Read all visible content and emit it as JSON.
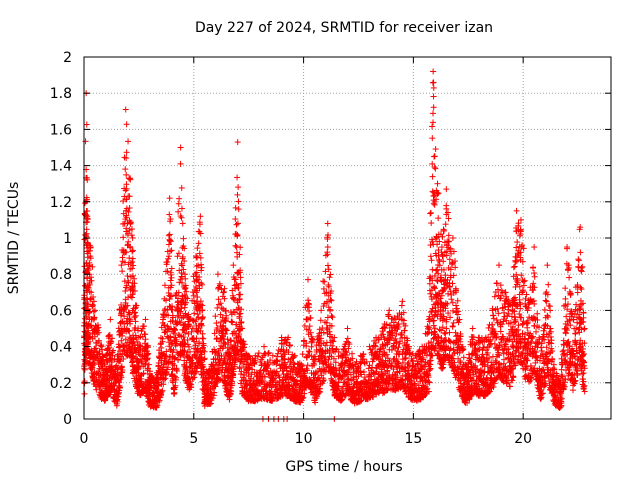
{
  "chart_data": {
    "type": "scatter",
    "title": "Day 227 of 2024, SRMTID for receiver izan",
    "xlabel": "GPS time / hours",
    "ylabel": "SRMTID / TECUs",
    "xlim": [
      0,
      24
    ],
    "ylim": [
      0,
      2
    ],
    "xticks": [
      0,
      5,
      10,
      15,
      20
    ],
    "yticks": [
      0,
      0.2,
      0.4,
      0.6,
      0.8,
      1,
      1.2,
      1.4,
      1.6,
      1.8,
      2
    ],
    "xtick_labels": [
      "0",
      "5",
      "10",
      "15",
      "20"
    ],
    "ytick_labels": [
      "0",
      "0.2",
      "0.4",
      "0.6",
      "0.8",
      "1",
      "1.2",
      "1.4",
      "1.6",
      "1.8",
      "2"
    ],
    "grid": true,
    "marker": "+",
    "marker_color": "#ff0000",
    "zero_markers_x": [
      8.15,
      8.4,
      8.65,
      8.85,
      9.1,
      9.25,
      11.4
    ],
    "series": [
      {
        "name": "SRMTID",
        "envelope": [
          {
            "x": 0.0,
            "y": 0.45
          },
          {
            "x": 0.1,
            "y": 1.8
          },
          {
            "x": 0.15,
            "y": 1.12
          },
          {
            "x": 0.3,
            "y": 0.95
          },
          {
            "x": 0.5,
            "y": 0.6
          },
          {
            "x": 0.8,
            "y": 0.4
          },
          {
            "x": 1.0,
            "y": 0.35
          },
          {
            "x": 1.2,
            "y": 0.55
          },
          {
            "x": 1.5,
            "y": 0.25
          },
          {
            "x": 1.7,
            "y": 0.85
          },
          {
            "x": 1.9,
            "y": 1.71
          },
          {
            "x": 2.1,
            "y": 1.33
          },
          {
            "x": 2.3,
            "y": 0.75
          },
          {
            "x": 2.5,
            "y": 0.45
          },
          {
            "x": 2.8,
            "y": 0.55
          },
          {
            "x": 3.0,
            "y": 0.25
          },
          {
            "x": 3.3,
            "y": 0.22
          },
          {
            "x": 3.6,
            "y": 0.55
          },
          {
            "x": 3.9,
            "y": 1.22
          },
          {
            "x": 4.1,
            "y": 0.45
          },
          {
            "x": 4.4,
            "y": 1.5
          },
          {
            "x": 4.6,
            "y": 0.8
          },
          {
            "x": 4.8,
            "y": 0.55
          },
          {
            "x": 5.1,
            "y": 0.9
          },
          {
            "x": 5.3,
            "y": 1.12
          },
          {
            "x": 5.5,
            "y": 0.25
          },
          {
            "x": 5.8,
            "y": 0.3
          },
          {
            "x": 6.1,
            "y": 0.8
          },
          {
            "x": 6.4,
            "y": 0.72
          },
          {
            "x": 6.6,
            "y": 0.35
          },
          {
            "x": 6.8,
            "y": 0.85
          },
          {
            "x": 7.0,
            "y": 1.53
          },
          {
            "x": 7.2,
            "y": 0.5
          },
          {
            "x": 7.5,
            "y": 0.35
          },
          {
            "x": 7.8,
            "y": 0.35
          },
          {
            "x": 8.2,
            "y": 0.4
          },
          {
            "x": 8.6,
            "y": 0.35
          },
          {
            "x": 9.0,
            "y": 0.45
          },
          {
            "x": 9.3,
            "y": 0.45
          },
          {
            "x": 9.6,
            "y": 0.35
          },
          {
            "x": 9.9,
            "y": 0.3
          },
          {
            "x": 10.2,
            "y": 0.77
          },
          {
            "x": 10.5,
            "y": 0.32
          },
          {
            "x": 10.8,
            "y": 0.6
          },
          {
            "x": 11.1,
            "y": 1.08
          },
          {
            "x": 11.4,
            "y": 0.45
          },
          {
            "x": 11.7,
            "y": 0.35
          },
          {
            "x": 12.0,
            "y": 0.5
          },
          {
            "x": 12.3,
            "y": 0.3
          },
          {
            "x": 12.6,
            "y": 0.35
          },
          {
            "x": 13.0,
            "y": 0.4
          },
          {
            "x": 13.3,
            "y": 0.45
          },
          {
            "x": 13.6,
            "y": 0.5
          },
          {
            "x": 13.9,
            "y": 0.6
          },
          {
            "x": 14.2,
            "y": 0.55
          },
          {
            "x": 14.5,
            "y": 0.65
          },
          {
            "x": 14.8,
            "y": 0.4
          },
          {
            "x": 15.1,
            "y": 0.35
          },
          {
            "x": 15.4,
            "y": 0.4
          },
          {
            "x": 15.7,
            "y": 0.55
          },
          {
            "x": 15.9,
            "y": 1.92
          },
          {
            "x": 16.1,
            "y": 1.3
          },
          {
            "x": 16.3,
            "y": 0.95
          },
          {
            "x": 16.5,
            "y": 1.27
          },
          {
            "x": 16.8,
            "y": 1.0
          },
          {
            "x": 17.1,
            "y": 0.55
          },
          {
            "x": 17.4,
            "y": 0.3
          },
          {
            "x": 17.7,
            "y": 0.5
          },
          {
            "x": 18.0,
            "y": 0.45
          },
          {
            "x": 18.3,
            "y": 0.45
          },
          {
            "x": 18.6,
            "y": 0.6
          },
          {
            "x": 18.9,
            "y": 0.85
          },
          {
            "x": 19.2,
            "y": 0.7
          },
          {
            "x": 19.5,
            "y": 0.6
          },
          {
            "x": 19.7,
            "y": 1.15
          },
          {
            "x": 19.9,
            "y": 1.1
          },
          {
            "x": 20.2,
            "y": 0.6
          },
          {
            "x": 20.5,
            "y": 0.95
          },
          {
            "x": 20.8,
            "y": 0.35
          },
          {
            "x": 21.1,
            "y": 0.85
          },
          {
            "x": 21.4,
            "y": 0.3
          },
          {
            "x": 21.7,
            "y": 0.2
          },
          {
            "x": 22.0,
            "y": 0.95
          },
          {
            "x": 22.3,
            "y": 0.55
          },
          {
            "x": 22.6,
            "y": 1.06
          },
          {
            "x": 22.8,
            "y": 0.5
          }
        ]
      }
    ]
  }
}
